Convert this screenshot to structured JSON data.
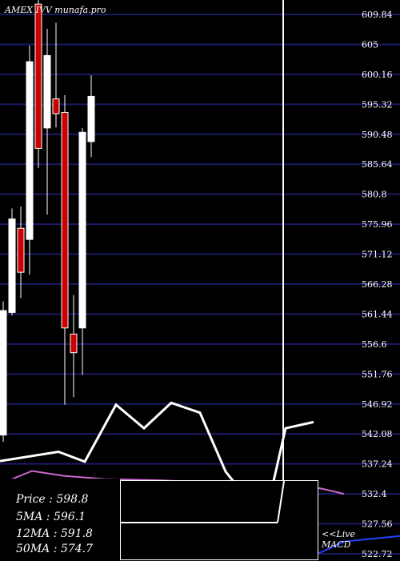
{
  "header": {
    "title": "AMEX IVV munafa.pro"
  },
  "legend": {
    "price": "Price   : 598.8",
    "ma5": "5MA : 596.1",
    "ma12": "12MA : 591.8",
    "ma50": "50MA : 574.7"
  },
  "macd": {
    "line1": "<<Live",
    "line2": "MACD"
  },
  "colors": {
    "background": "#000000",
    "grid": "#1a1a66",
    "up": "#ffffff",
    "down": "#cc0000",
    "ma50": "#cc66cc",
    "macd": "#2244ff"
  },
  "chart_data": {
    "type": "candlestick",
    "title": "AMEX IVV munafa.pro",
    "y_ticks": [
      "609.84",
      "605",
      "600.16",
      "595.32",
      "590.48",
      "585.64",
      "580.8",
      "575.96",
      "571.12",
      "566.28",
      "561.44",
      "556.6",
      "551.76",
      "546.92",
      "542.08",
      "537.24",
      "532.4",
      "527.56",
      "522.72"
    ],
    "ylim": [
      522.72,
      609.84
    ],
    "candles": [
      {
        "open": 541.9,
        "close": 562.0,
        "high": 563.5,
        "low": 540.8,
        "dir": "up"
      },
      {
        "open": 561.7,
        "close": 576.8,
        "high": 578.5,
        "low": 561.2,
        "dir": "up"
      },
      {
        "open": 575.3,
        "close": 568.2,
        "high": 578.8,
        "low": 564.0,
        "dir": "down"
      },
      {
        "open": 573.5,
        "close": 602.2,
        "high": 604.8,
        "low": 567.8,
        "dir": "up"
      },
      {
        "open": 611.5,
        "close": 588.2,
        "high": 612.5,
        "low": 585.0,
        "dir": "down"
      },
      {
        "open": 591.5,
        "close": 603.2,
        "high": 607.5,
        "low": 577.5,
        "dir": "up"
      },
      {
        "open": 596.2,
        "close": 593.8,
        "high": 608.5,
        "low": 591.6,
        "dir": "down"
      },
      {
        "open": 594.0,
        "close": 559.2,
        "high": 596.8,
        "low": 546.8,
        "dir": "down"
      },
      {
        "open": 558.2,
        "close": 555.2,
        "high": 564.5,
        "low": 548.0,
        "dir": "down"
      },
      {
        "open": 559.2,
        "close": 590.8,
        "high": 591.5,
        "low": 551.6,
        "dir": "up"
      },
      {
        "open": 589.3,
        "close": 596.6,
        "high": 600.0,
        "low": 586.8,
        "dir": "up"
      }
    ],
    "ma50": [
      534.0,
      536.1,
      535.3,
      534.8,
      534.6,
      534.0,
      533.3,
      532.4
    ],
    "ma50_x": [
      0,
      40,
      80,
      130,
      200,
      300,
      400,
      430
    ],
    "overlay_line": [
      537.7,
      539.2,
      537.6,
      546.8,
      543.0,
      547.1,
      545.5,
      536.0,
      531.5,
      530.5,
      543.0,
      544.0
    ],
    "overlay_x": [
      0,
      73,
      106,
      145,
      180,
      214,
      250,
      282,
      310,
      335,
      357,
      392
    ],
    "macd_line": [
      522.8,
      522.2,
      523.5,
      524.1,
      524.8,
      522.9,
      524.7,
      525.6
    ],
    "macd_x": [
      0,
      150,
      210,
      260,
      300,
      400,
      430,
      500
    ]
  }
}
